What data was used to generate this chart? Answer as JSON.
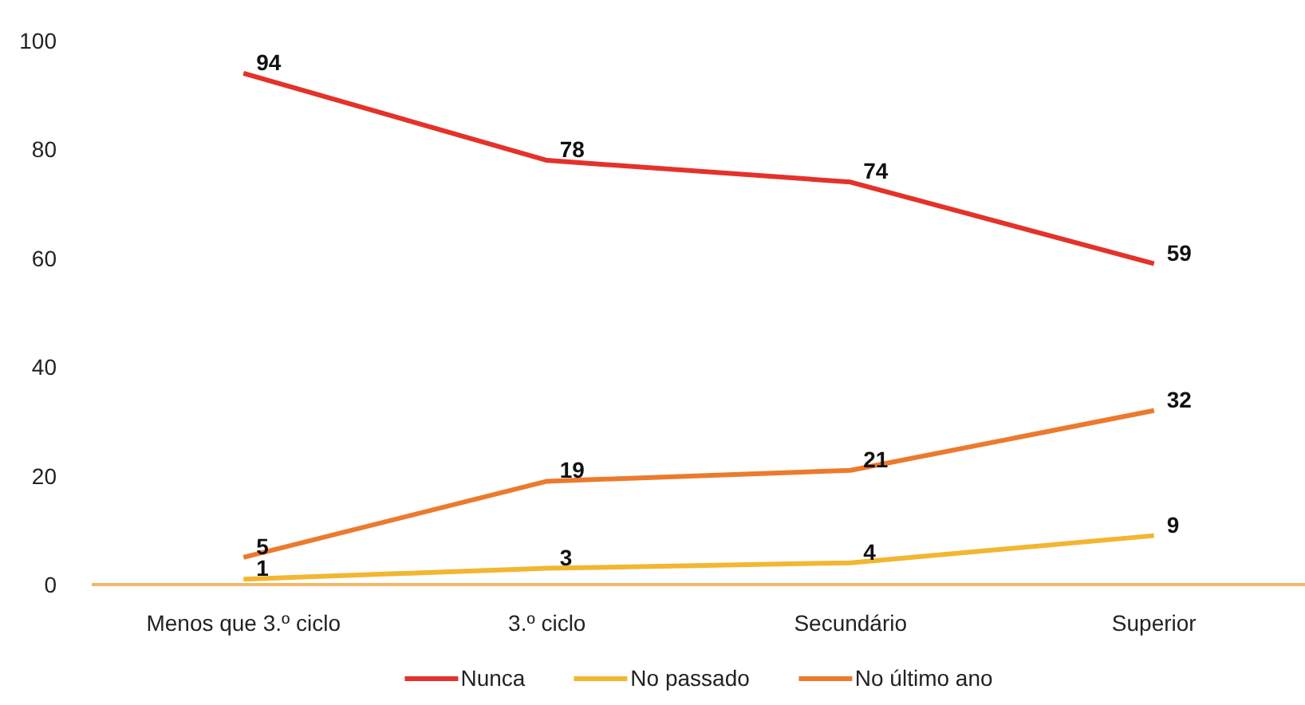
{
  "chart_data": {
    "type": "line",
    "categories": [
      "Menos que 3.º ciclo",
      "3.º ciclo",
      "Secundário",
      "Superior"
    ],
    "series": [
      {
        "name": "Nunca",
        "color": "#e4322b",
        "values": [
          94,
          78,
          74,
          59
        ]
      },
      {
        "name": "No passado",
        "color": "#f2b631",
        "values": [
          1,
          3,
          4,
          9
        ]
      },
      {
        "name": "No último ano",
        "color": "#ec7a2e",
        "values": [
          5,
          19,
          21,
          32
        ]
      }
    ],
    "ylim": [
      0,
      100
    ],
    "yticks": [
      0,
      20,
      40,
      60,
      80,
      100
    ],
    "data_labels": true,
    "legend": "bottom",
    "marker": "none",
    "line_style": "solid"
  }
}
